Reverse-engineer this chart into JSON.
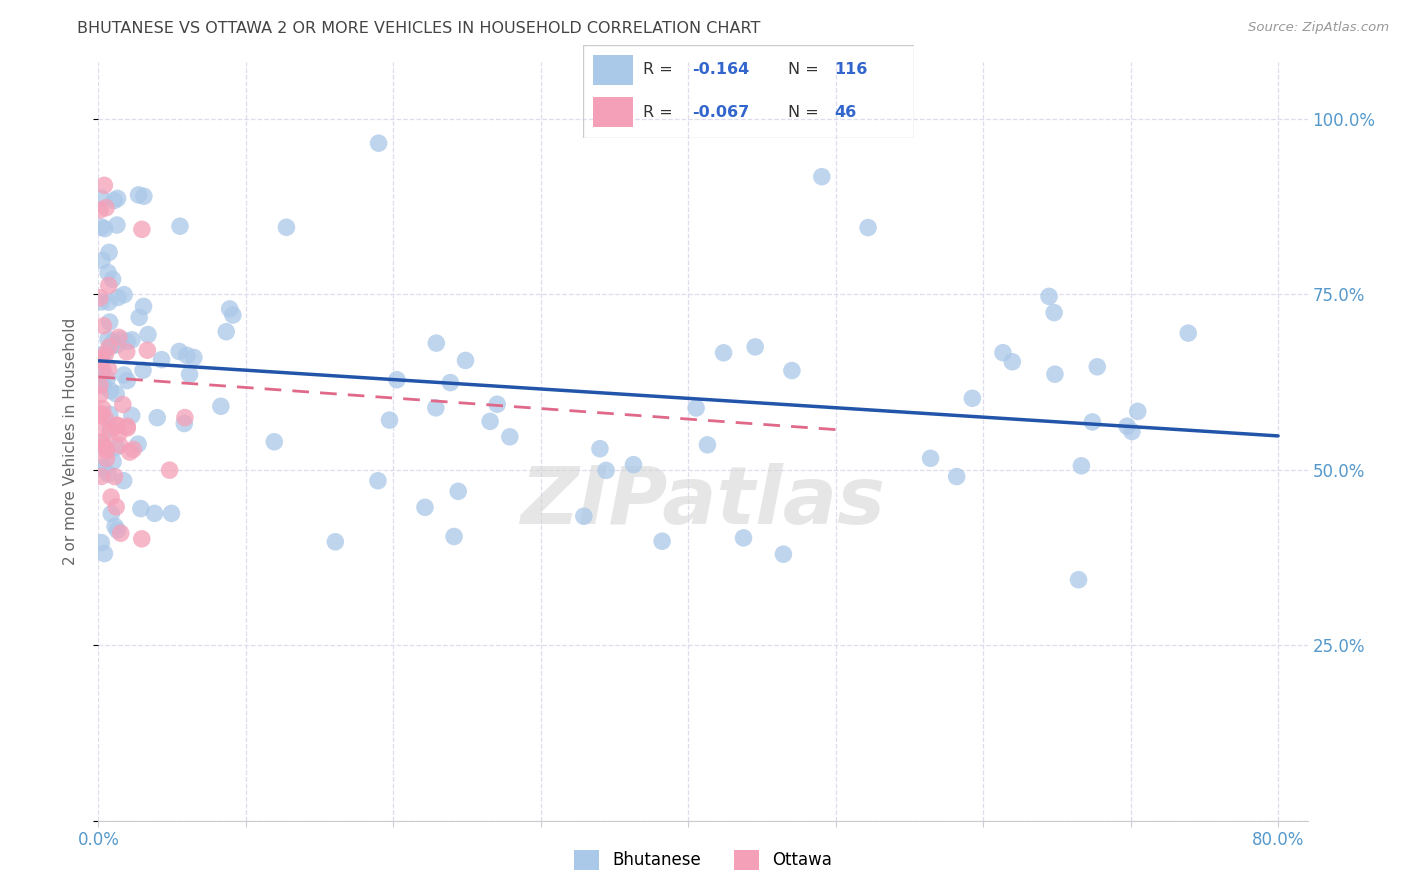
{
  "title": "BHUTANESE VS OTTAWA 2 OR MORE VEHICLES IN HOUSEHOLD CORRELATION CHART",
  "source": "Source: ZipAtlas.com",
  "ylabel": "2 or more Vehicles in Household",
  "bhutanese_R": -0.164,
  "bhutanese_N": 116,
  "ottawa_R": -0.067,
  "ottawa_N": 46,
  "bhutanese_color": "#aac8e8",
  "ottawa_color": "#f4a0b8",
  "bhutanese_line_color": "#2255aa",
  "ottawa_line_color": "#e06888",
  "watermark": "ZIPatlas",
  "xlim": [
    0.0,
    0.82
  ],
  "ylim": [
    0.0,
    1.08
  ],
  "x_ticks": [
    0.0,
    0.1,
    0.2,
    0.3,
    0.4,
    0.5,
    0.6,
    0.7,
    0.8
  ],
  "x_tick_labels": [
    "0.0%",
    "",
    "",
    "",
    "",
    "",
    "",
    "",
    "80.0%"
  ],
  "y_ticks": [
    0.0,
    0.25,
    0.5,
    0.75,
    1.0
  ],
  "y_tick_labels": [
    "",
    "25.0%",
    "50.0%",
    "75.0%",
    "100.0%"
  ],
  "grid_color": "#ddddee",
  "spine_color": "#cccccc",
  "title_color": "#444444",
  "source_color": "#999999",
  "axis_label_color": "#666666",
  "tick_color": "#5599cc",
  "legend_R_color": "#3366cc",
  "legend_N_color": "#3366cc",
  "bhutanese_trendline_start_y": 0.655,
  "bhutanese_trendline_end_y": 0.548,
  "ottawa_trendline_start_y": 0.632,
  "ottawa_trendline_end_y": 0.557,
  "ottawa_trendline_end_x": 0.5
}
